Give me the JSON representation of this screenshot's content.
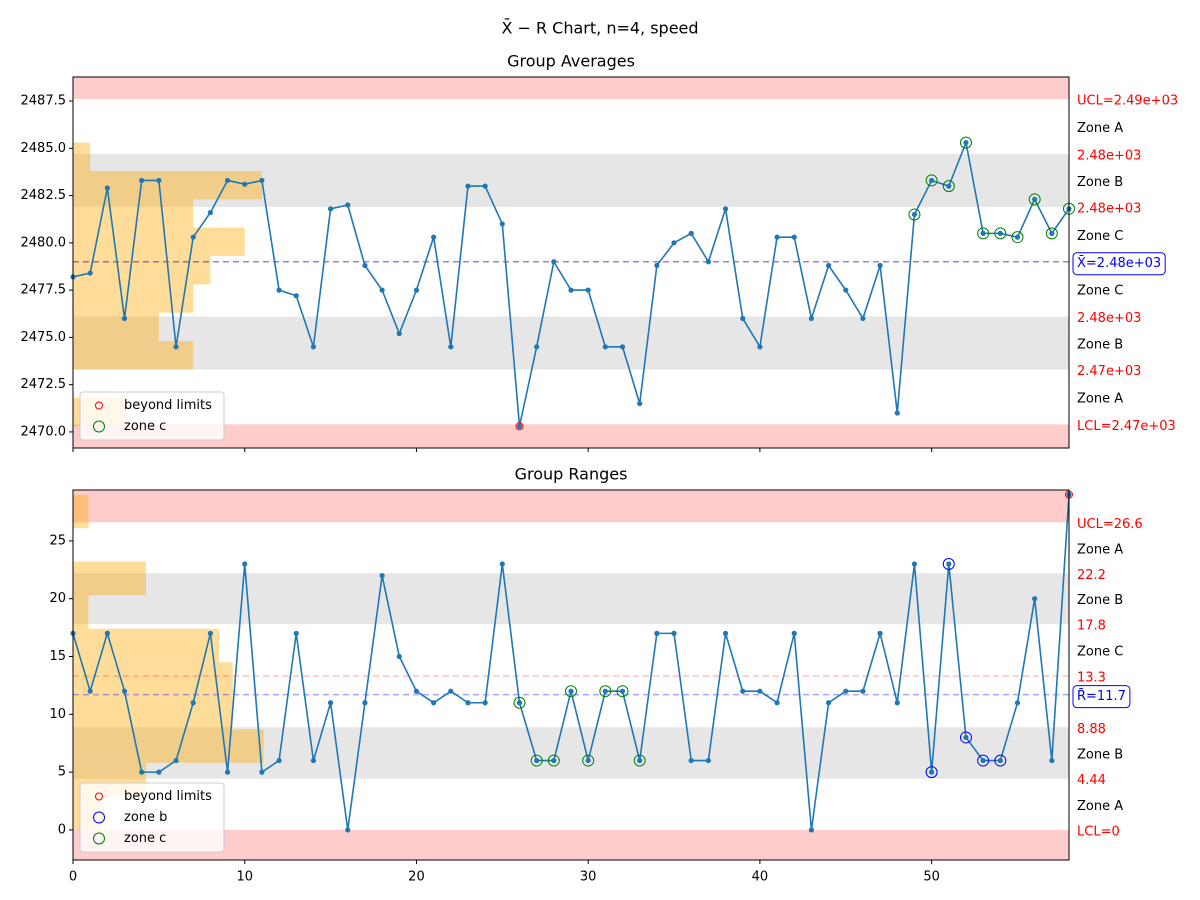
{
  "title": "X̄ − R Chart, n=4, speed",
  "chart_data": [
    {
      "type": "line",
      "title": "Group Averages",
      "x": [
        0,
        1,
        2,
        3,
        4,
        5,
        6,
        7,
        8,
        9,
        10,
        11,
        12,
        13,
        14,
        15,
        16,
        17,
        18,
        19,
        20,
        21,
        22,
        23,
        24,
        25,
        26,
        27,
        28,
        29,
        30,
        31,
        32,
        33,
        34,
        35,
        36,
        37,
        38,
        39,
        40,
        41,
        42,
        43,
        44,
        45,
        46,
        47,
        48,
        49,
        50,
        51,
        52,
        53,
        54,
        55,
        56,
        57,
        58
      ],
      "series": [
        {
          "color": "#1f77b4",
          "values": [
            2478.2,
            2478.4,
            2482.9,
            2476.0,
            2483.3,
            2483.3,
            2474.5,
            2480.3,
            2481.6,
            2483.3,
            2483.1,
            2483.3,
            2477.5,
            2477.2,
            2474.5,
            2481.8,
            2482.0,
            2478.8,
            2477.5,
            2475.2,
            2477.5,
            2480.3,
            2474.5,
            2483.0,
            2483.0,
            2481.0,
            2470.3,
            2474.5,
            2479.0,
            2477.5,
            2477.5,
            2474.5,
            2474.5,
            2471.5,
            2478.8,
            2480.0,
            2480.5,
            2479.0,
            2481.8,
            2476.0,
            2474.5,
            2480.3,
            2480.3,
            2476.0,
            2478.8,
            2477.5,
            2476.0,
            2478.8,
            2471.0,
            2481.5,
            2483.3,
            2483.0,
            2485.3,
            2480.5,
            2480.5,
            2480.3,
            2482.3,
            2480.5,
            2481.8
          ]
        }
      ],
      "flags": [
        {
          "name": "beyond limits",
          "color": "red",
          "points": [
            26
          ]
        },
        {
          "name": "zone c",
          "color": "green",
          "points": [
            49,
            50,
            51,
            52,
            53,
            54,
            55,
            56,
            57,
            58
          ]
        }
      ],
      "limits": [
        {
          "value": 2487.6,
          "label": "UCL=2.49e+03"
        },
        {
          "value": 2484.7,
          "label": "2.48e+03"
        },
        {
          "value": 2481.9,
          "label": "2.48e+03"
        },
        {
          "value": 2476.1,
          "label": "2.48e+03"
        },
        {
          "value": 2473.3,
          "label": "2.47e+03"
        },
        {
          "value": 2470.4,
          "label": "LCL=2.47e+03"
        }
      ],
      "center": {
        "value": 2479.0,
        "label": "X̄=2.48e+03"
      },
      "zones": [
        "Zone A",
        "Zone B",
        "Zone C",
        "Zone C",
        "Zone B",
        "Zone A"
      ],
      "histogram": {
        "bins": [
          2470.3,
          2471.8,
          2473.3,
          2474.8,
          2476.3,
          2477.8,
          2479.3,
          2480.8,
          2482.3,
          2483.8,
          2485.3
        ],
        "counts": [
          3,
          0,
          7,
          5,
          7,
          8,
          10,
          7,
          11,
          1
        ]
      },
      "xlim": [
        0,
        58
      ],
      "xticks": [
        0,
        10,
        20,
        30,
        40,
        50
      ],
      "ylim": [
        2469.15,
        2488.77
      ],
      "yticks": [
        {
          "value": 2470,
          "label": "2470.0"
        },
        {
          "value": 2472.5,
          "label": "2472.5"
        },
        {
          "value": 2475,
          "label": "2475.0"
        },
        {
          "value": 2477.5,
          "label": "2477.5"
        },
        {
          "value": 2480,
          "label": "2480.0"
        },
        {
          "value": 2482.5,
          "label": "2482.5"
        },
        {
          "value": 2485,
          "label": "2485.0"
        },
        {
          "value": 2487.5,
          "label": "2487.5"
        }
      ]
    },
    {
      "type": "line",
      "title": "Group Ranges",
      "x": [
        0,
        1,
        2,
        3,
        4,
        5,
        6,
        7,
        8,
        9,
        10,
        11,
        12,
        13,
        14,
        15,
        16,
        17,
        18,
        19,
        20,
        21,
        22,
        23,
        24,
        25,
        26,
        27,
        28,
        29,
        30,
        31,
        32,
        33,
        34,
        35,
        36,
        37,
        38,
        39,
        40,
        41,
        42,
        43,
        44,
        45,
        46,
        47,
        48,
        49,
        50,
        51,
        52,
        53,
        54,
        55,
        56,
        57,
        58
      ],
      "series": [
        {
          "color": "#1f77b4",
          "values": [
            17,
            12,
            17,
            12,
            5,
            5,
            6,
            11,
            17,
            5,
            23,
            5,
            6,
            17,
            6,
            11,
            0,
            11,
            22,
            15,
            12,
            11,
            12,
            11,
            11,
            23,
            11,
            6,
            6,
            12,
            6,
            12,
            12,
            6,
            17,
            17,
            6,
            6,
            17,
            12,
            12,
            11,
            17,
            0,
            11,
            12,
            12,
            17,
            11,
            23,
            5,
            23,
            8,
            6,
            6,
            11,
            20,
            6,
            29
          ]
        }
      ],
      "flags": [
        {
          "name": "beyond limits",
          "color": "red",
          "points": [
            58
          ]
        },
        {
          "name": "zone b",
          "color": "blue",
          "points": [
            50,
            51,
            52,
            53,
            54
          ]
        },
        {
          "name": "zone c",
          "color": "green",
          "points": [
            26,
            27,
            28,
            29,
            30,
            31,
            32,
            33
          ]
        }
      ],
      "limits": [
        {
          "value": 26.6,
          "label": "UCL=26.6"
        },
        {
          "value": 22.2,
          "label": "22.2"
        },
        {
          "value": 17.8,
          "label": "17.8"
        },
        {
          "value": 13.3,
          "label": "13.3"
        },
        {
          "value": 8.88,
          "label": "8.88"
        },
        {
          "value": 4.44,
          "label": "4.44"
        },
        {
          "value": 0,
          "label": "LCL=0"
        }
      ],
      "center": {
        "value": 11.7,
        "label": "R̄=11.7"
      },
      "zones": [
        "Zone A",
        "Zone B",
        "Zone C",
        "Zone C",
        "Zone B",
        "Zone A"
      ],
      "histogram": {
        "bins": [
          0,
          2.9,
          5.8,
          8.7,
          11.6,
          14.5,
          17.4,
          20.3,
          23.2,
          26.1,
          29
        ],
        "counts": [
          1.7,
          4.25,
          11.1,
          9.3,
          9.3,
          8.5,
          0.9,
          4.25,
          0,
          0.9
        ]
      },
      "xlim": [
        0,
        58
      ],
      "xticks": [
        0,
        10,
        20,
        30,
        40,
        50
      ],
      "ylim": [
        -2.6,
        29.4
      ],
      "yticks": [
        0,
        5,
        10,
        15,
        20,
        25
      ]
    }
  ]
}
